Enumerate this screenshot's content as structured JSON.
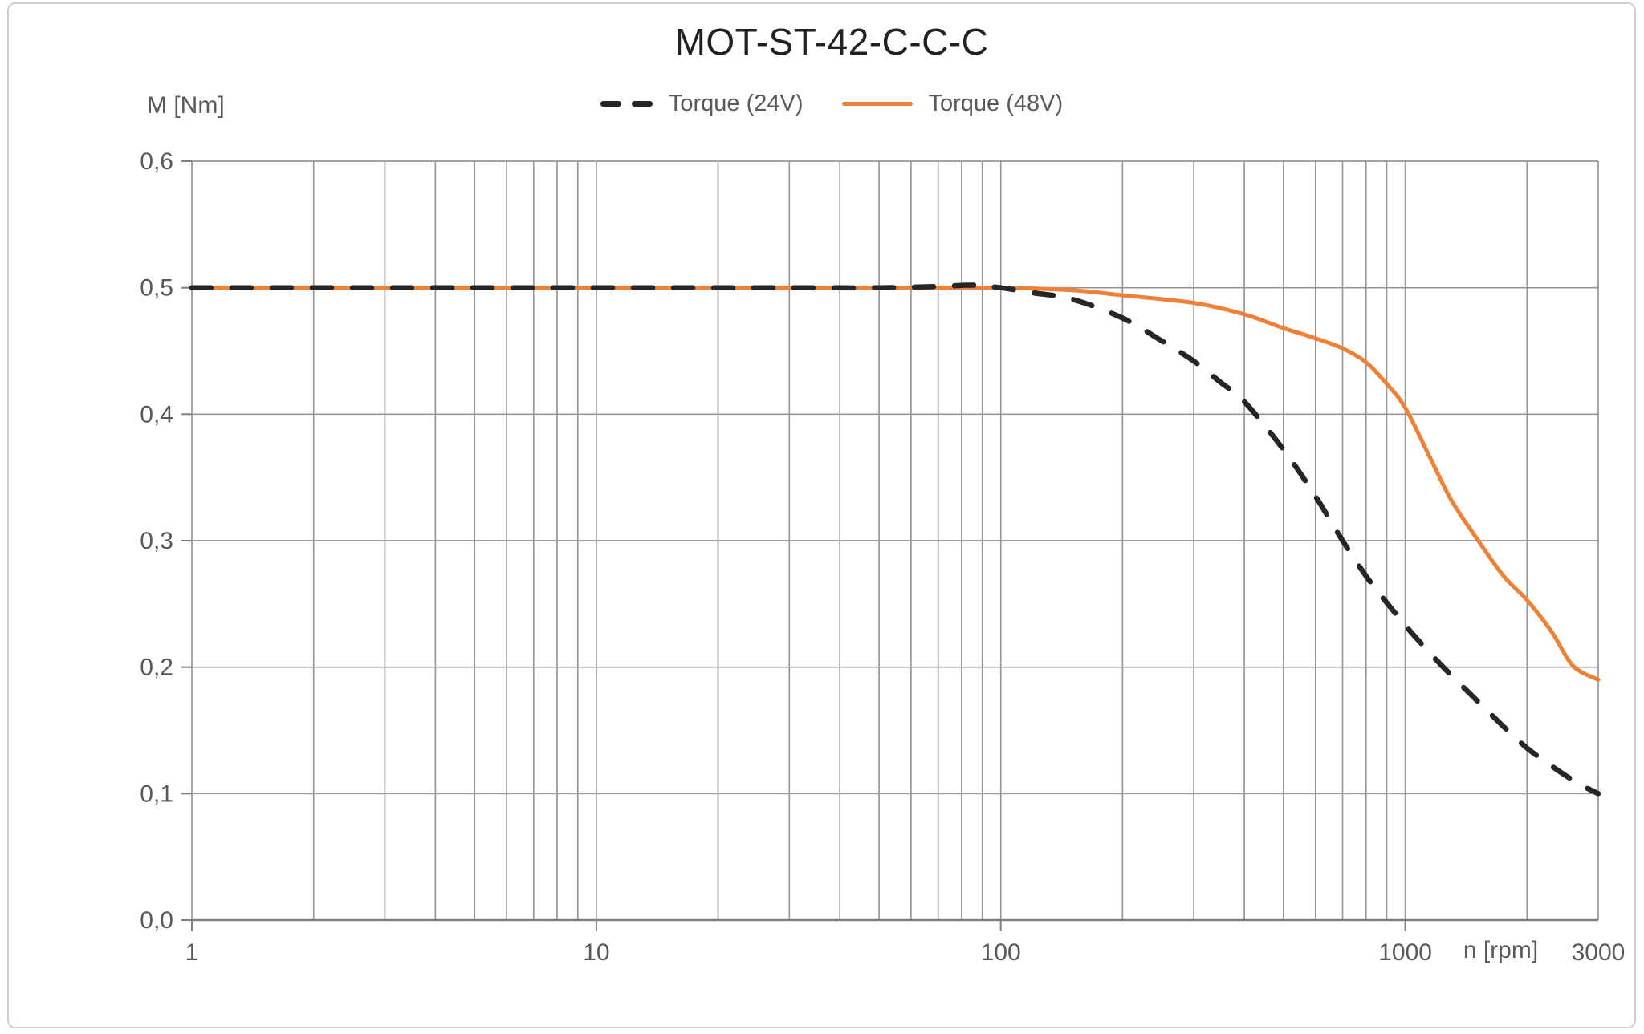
{
  "title": "MOT-ST-42-C-C-C",
  "legend": [
    {
      "label": "Torque (24V)",
      "color": "#262626",
      "line_style": "dashed"
    },
    {
      "label": "Torque (48V)",
      "color": "#ED8138",
      "line_style": "solid"
    }
  ],
  "chart_data": {
    "type": "line",
    "title": "MOT-ST-42-C-C-C",
    "x_axis": {
      "label": "n [rpm]",
      "scale": "log",
      "min": 1,
      "max": 3000,
      "ticks": [
        {
          "value": 1,
          "label": "1",
          "tick_mark": true
        },
        {
          "value": 10,
          "label": "10",
          "tick_mark": true
        },
        {
          "value": 100,
          "label": "100",
          "tick_mark": true
        },
        {
          "value": 1000,
          "label": "1000",
          "tick_mark": true
        },
        {
          "value": 3000,
          "label": "3000",
          "tick_mark": false
        }
      ],
      "gridlines": [
        1,
        2,
        3,
        4,
        5,
        6,
        7,
        8,
        9,
        10,
        20,
        30,
        40,
        50,
        60,
        70,
        80,
        90,
        100,
        200,
        300,
        400,
        500,
        600,
        700,
        800,
        900,
        1000,
        2000,
        3000
      ]
    },
    "y_axis": {
      "label": "M [Nm]",
      "min": 0,
      "max": 0.6,
      "ticks": [
        {
          "value": 0.0,
          "label": "0,0"
        },
        {
          "value": 0.1,
          "label": "0,1"
        },
        {
          "value": 0.2,
          "label": "0,2"
        },
        {
          "value": 0.3,
          "label": "0,3"
        },
        {
          "value": 0.4,
          "label": "0,4"
        },
        {
          "value": 0.5,
          "label": "0,5"
        },
        {
          "value": 0.6,
          "label": "0,6"
        }
      ],
      "gridlines": [
        0,
        0.1,
        0.2,
        0.3,
        0.4,
        0.5,
        0.6
      ]
    },
    "series": [
      {
        "name": "Torque (24V)",
        "voltage": "24V",
        "color": "#262626",
        "dashed": true,
        "points": [
          [
            1,
            0.5
          ],
          [
            5,
            0.5
          ],
          [
            10,
            0.5
          ],
          [
            20,
            0.5
          ],
          [
            30,
            0.5
          ],
          [
            50,
            0.5
          ],
          [
            70,
            0.501
          ],
          [
            85,
            0.502
          ],
          [
            100,
            0.5
          ],
          [
            120,
            0.496
          ],
          [
            150,
            0.491
          ],
          [
            200,
            0.476
          ],
          [
            250,
            0.458
          ],
          [
            300,
            0.442
          ],
          [
            350,
            0.425
          ],
          [
            400,
            0.41
          ],
          [
            500,
            0.372
          ],
          [
            600,
            0.335
          ],
          [
            700,
            0.3
          ],
          [
            800,
            0.272
          ],
          [
            900,
            0.251
          ],
          [
            1000,
            0.233
          ],
          [
            1100,
            0.218
          ],
          [
            1250,
            0.199
          ],
          [
            1500,
            0.174
          ],
          [
            1750,
            0.153
          ],
          [
            2000,
            0.136
          ],
          [
            2250,
            0.124
          ],
          [
            2500,
            0.114
          ],
          [
            2750,
            0.106
          ],
          [
            3000,
            0.1
          ]
        ]
      },
      {
        "name": "Torque (48V)",
        "voltage": "48V",
        "color": "#ED8138",
        "dashed": false,
        "points": [
          [
            1,
            0.5
          ],
          [
            10,
            0.5
          ],
          [
            50,
            0.5
          ],
          [
            100,
            0.5
          ],
          [
            150,
            0.498
          ],
          [
            200,
            0.494
          ],
          [
            300,
            0.488
          ],
          [
            400,
            0.479
          ],
          [
            500,
            0.468
          ],
          [
            600,
            0.46
          ],
          [
            700,
            0.452
          ],
          [
            800,
            0.441
          ],
          [
            900,
            0.424
          ],
          [
            1000,
            0.405
          ],
          [
            1150,
            0.366
          ],
          [
            1300,
            0.332
          ],
          [
            1500,
            0.302
          ],
          [
            1750,
            0.272
          ],
          [
            2000,
            0.253
          ],
          [
            2300,
            0.228
          ],
          [
            2600,
            0.201
          ],
          [
            3000,
            0.19
          ]
        ]
      }
    ]
  },
  "style": {
    "grid_color": "#979797",
    "axis_color": "#7F7F7F",
    "tick_color": "#7F7F7F",
    "tick_label_color": "#595959",
    "title_color": "#212121",
    "legend_text_color": "#595959",
    "background": "#FFFFFF",
    "border_color": "#CFCFCF"
  }
}
